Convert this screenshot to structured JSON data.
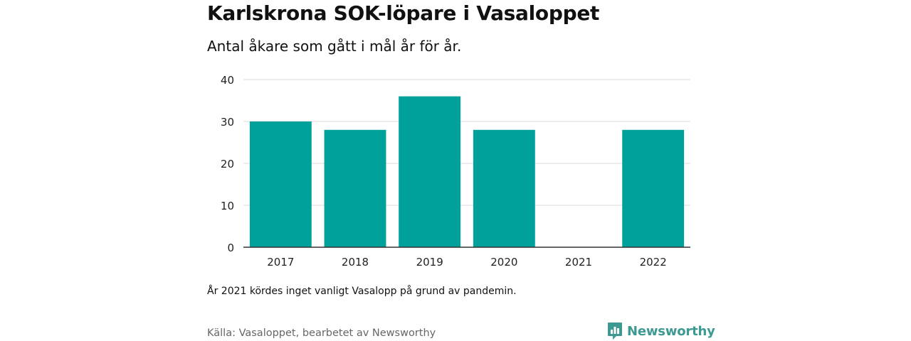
{
  "chart_data": {
    "type": "bar",
    "title": "Karlskrona SOK-löpare i Vasaloppet",
    "subtitle": "Antal åkare som gått i mål år för år.",
    "categories": [
      "2017",
      "2018",
      "2019",
      "2020",
      "2021",
      "2022"
    ],
    "values": [
      30,
      28,
      36,
      28,
      0,
      28
    ],
    "xlabel": "",
    "ylabel": "",
    "ylim": [
      0,
      40
    ],
    "yticks": [
      0,
      10,
      20,
      30,
      40
    ],
    "grid": true,
    "bar_color": "#00a19a",
    "note": "År 2021 kördes inget vanligt Vasalopp på grund av pandemin.",
    "source": "Källa: Vasaloppet, bearbetet av Newsworthy"
  },
  "brand": {
    "name": "Newsworthy",
    "icon": "newsworthy-logo-icon",
    "color": "#3d9992"
  }
}
